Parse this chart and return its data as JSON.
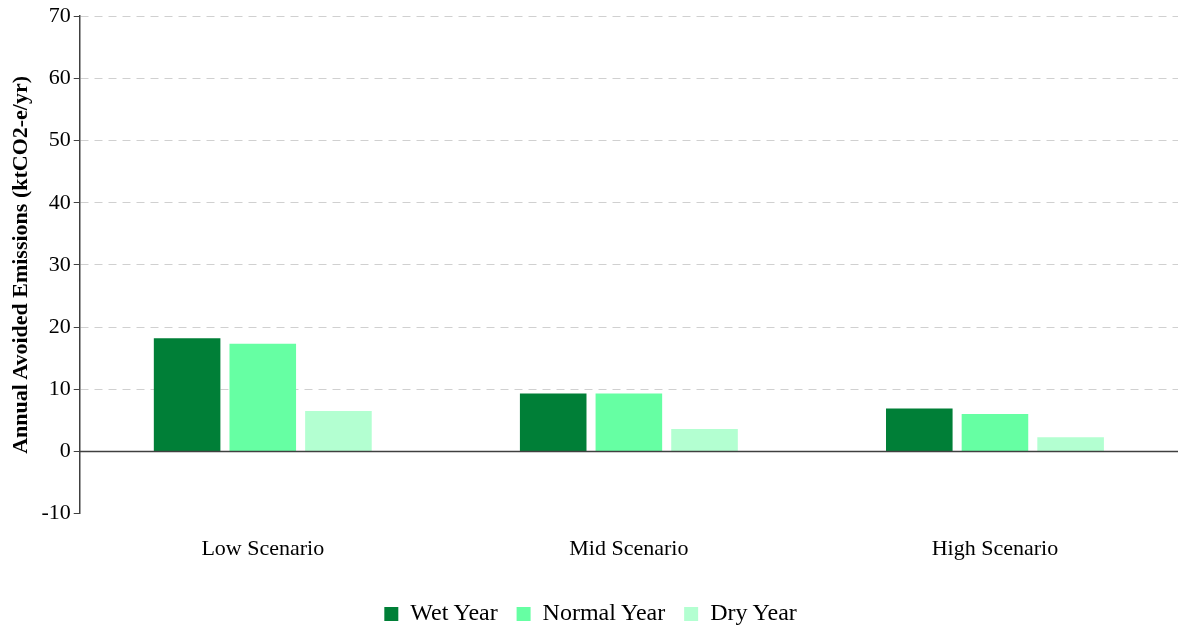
{
  "chart_data": {
    "type": "bar",
    "ylabel": "Annual Avoided Emissions (ktCO2-e/yr)",
    "categories": [
      "Low Scenario",
      "Mid Scenario",
      "High Scenario"
    ],
    "series": [
      {
        "name": "Wet Year",
        "color": "#007f37",
        "values": [
          18.2,
          9.3,
          6.9
        ]
      },
      {
        "name": "Normal Year",
        "color": "#66ffa3",
        "values": [
          17.3,
          9.3,
          6.0
        ]
      },
      {
        "name": "Dry Year",
        "color": "#b3ffd1",
        "values": [
          6.5,
          3.6,
          2.3
        ]
      }
    ],
    "ylim": [
      -10,
      70
    ],
    "yticks": [
      -10,
      0,
      10,
      20,
      30,
      40,
      50,
      60,
      70
    ],
    "grid": "y",
    "legend": "bottom"
  }
}
